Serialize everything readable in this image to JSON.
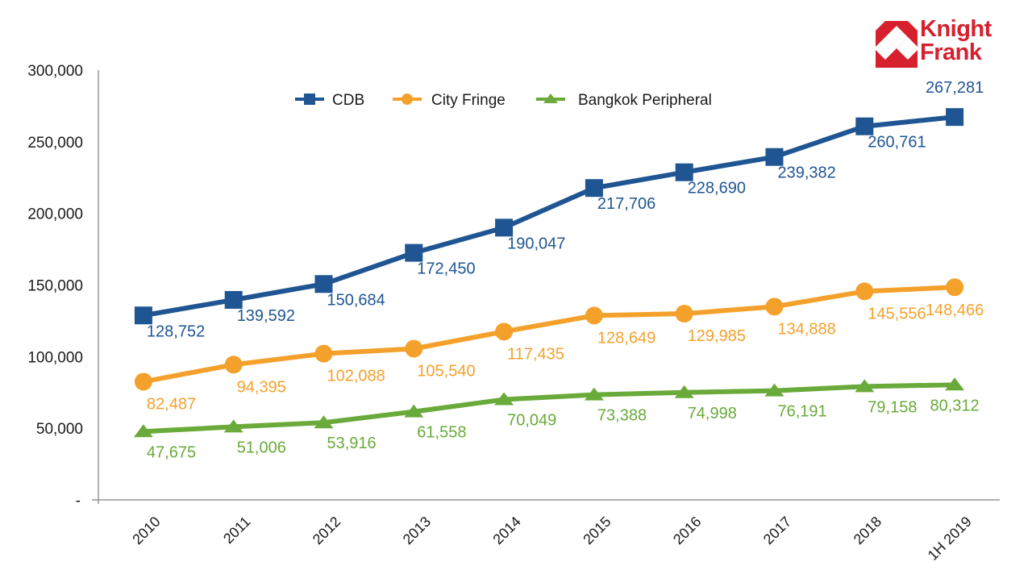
{
  "brand": {
    "name_line1": "Knight",
    "name_line2": "Frank",
    "color": "#d6202d"
  },
  "chart_data": {
    "type": "line",
    "title": "",
    "xlabel": "",
    "ylabel": "",
    "categories": [
      "2010",
      "2011",
      "2012",
      "2013",
      "2014",
      "2015",
      "2016",
      "2017",
      "2018",
      "1H 2019"
    ],
    "ylim": [
      0,
      300000
    ],
    "yticks": [
      0,
      50000,
      100000,
      150000,
      200000,
      250000,
      300000
    ],
    "ytick_labels": [
      "-",
      "50,000",
      "100,000",
      "150,000",
      "200,000",
      "250,000",
      "300,000"
    ],
    "grid": false,
    "legend_position": "top-center",
    "series": [
      {
        "name": "CDB",
        "color": "#1f5592",
        "marker": "square",
        "values": [
          128752,
          139592,
          150684,
          172450,
          190047,
          217706,
          228690,
          239382,
          260761,
          267281
        ],
        "labels": [
          "128,752",
          "139,592",
          "150,684",
          "172,450",
          "190,047",
          "217,706",
          "228,690",
          "239,382",
          "260,761",
          "267,281"
        ]
      },
      {
        "name": "City Fringe",
        "color": "#f4a12c",
        "marker": "circle",
        "values": [
          82487,
          94395,
          102088,
          105540,
          117435,
          128649,
          129985,
          134888,
          145556,
          148466
        ],
        "labels": [
          "82,487",
          "94,395",
          "102,088",
          "105,540",
          "117,435",
          "128,649",
          "129,985",
          "134,888",
          "145,556",
          "148,466"
        ]
      },
      {
        "name": "Bangkok Peripheral",
        "color": "#6aaa3a",
        "marker": "triangle",
        "values": [
          47675,
          51006,
          53916,
          61558,
          70049,
          73388,
          74998,
          76191,
          79158,
          80312
        ],
        "labels": [
          "47,675",
          "51,006",
          "53,916",
          "61,558",
          "70,049",
          "73,388",
          "74,998",
          "76,191",
          "79,158",
          "80,312"
        ]
      }
    ]
  }
}
